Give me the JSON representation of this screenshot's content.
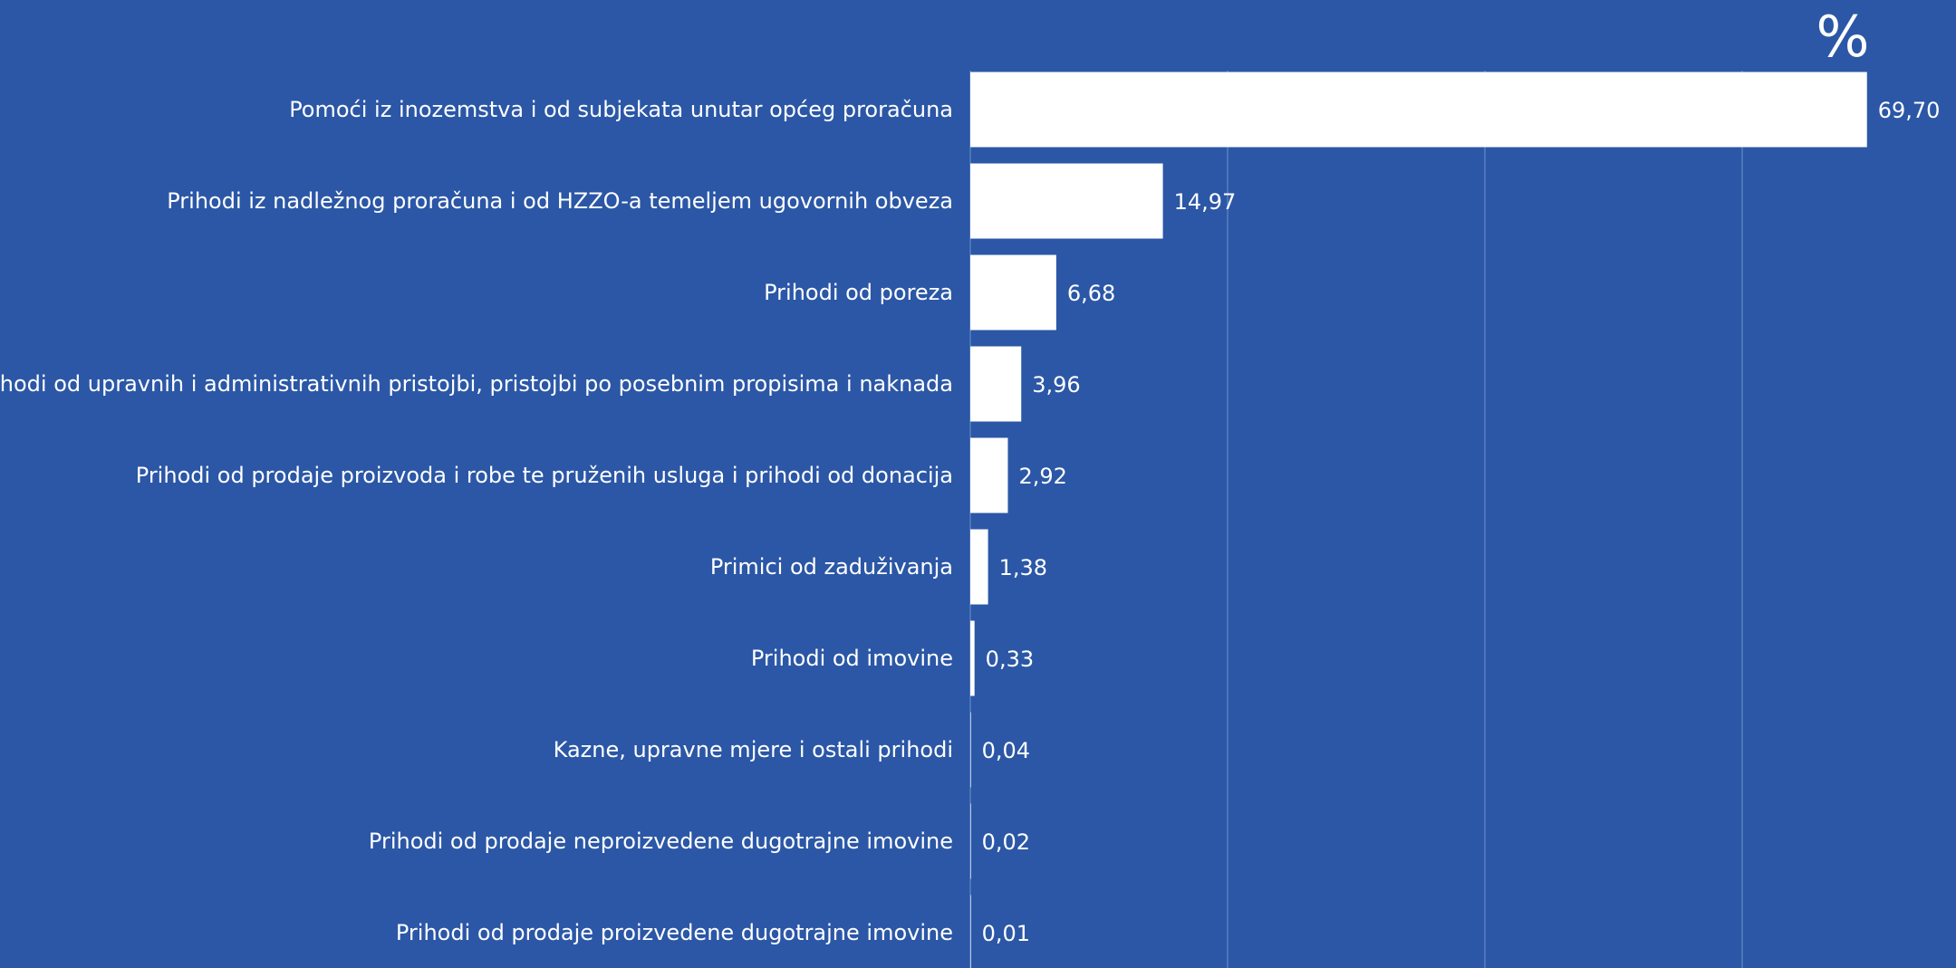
{
  "colors": {
    "background": "#2b57a6",
    "bar": "#ffffff",
    "text": "#ffffff",
    "grid": "#5a7fbf"
  },
  "chart_data": {
    "type": "bar",
    "orientation": "horizontal",
    "unit_label": "%",
    "categories": [
      "Pomoći iz inozemstva i od subjekata unutar općeg proračuna",
      "Prihodi iz nadležnog proračuna i od HZZO-a temeljem ugovornih obveza",
      "Prihodi od poreza",
      "Prihodi od upravnih i administrativnih pristojbi, pristojbi po posebnim propisima i naknada",
      "Prihodi od prodaje proizvoda i robe te pruženih usluga i prihodi od donacija",
      "Primici od zaduživanja",
      "Prihodi od imovine",
      "Kazne, upravne mjere i ostali prihodi",
      "Prihodi od prodaje neproizvedene dugotrajne imovine",
      "Prihodi od prodaje proizvedene dugotrajne imovine"
    ],
    "values": [
      69.7,
      14.97,
      6.68,
      3.96,
      2.92,
      1.38,
      0.33,
      0.04,
      0.02,
      0.01
    ],
    "value_labels": [
      "69,70",
      "14,97",
      "6,68",
      "3,96",
      "2,92",
      "1,38",
      "0,33",
      "0,04",
      "0,02",
      "0,01"
    ],
    "xlim": [
      0,
      80
    ],
    "grid": true,
    "legend": "none"
  }
}
